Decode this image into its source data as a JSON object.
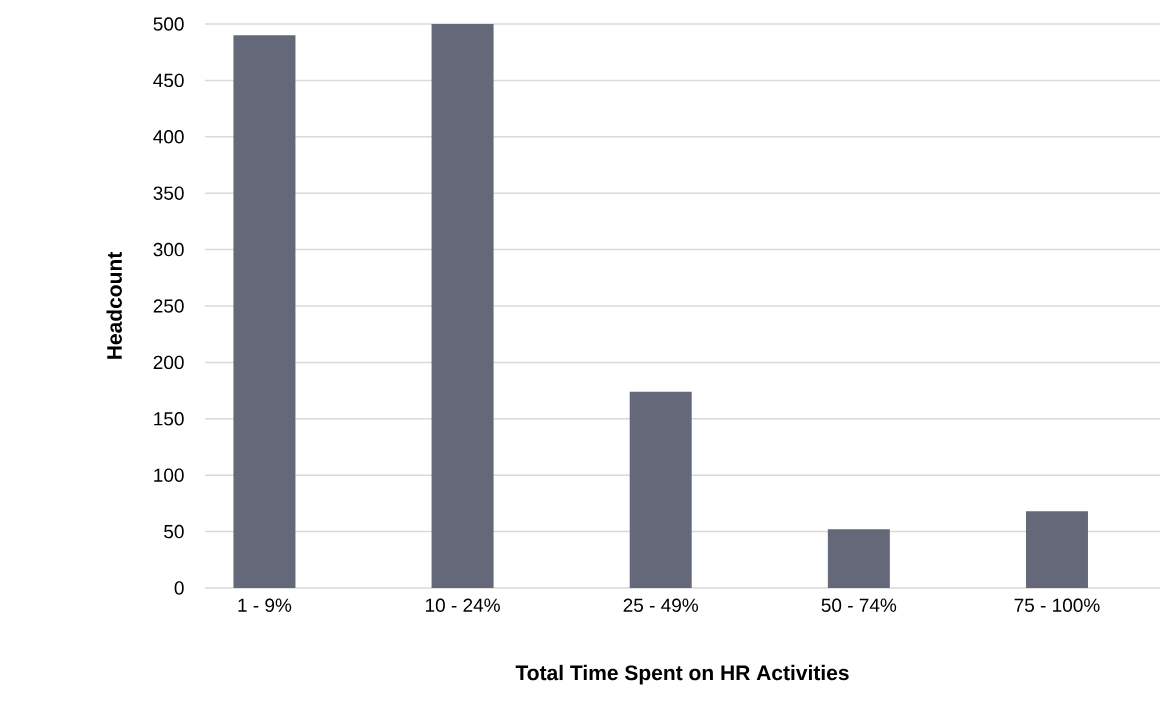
{
  "chart_data": {
    "type": "bar",
    "xlabel": "Total Time Spent on HR Activities",
    "ylabel": "Headcount",
    "categories": [
      "1 - 9%",
      "10 - 24%",
      "25 - 49%",
      "50 - 74%",
      "75 - 100%"
    ],
    "values": [
      490,
      500,
      174,
      52,
      68
    ],
    "color": "#646879",
    "ylim": [
      0,
      500
    ],
    "yticks": [
      0,
      50,
      100,
      150,
      200,
      250,
      300,
      350,
      400,
      450,
      500
    ],
    "grid": "y",
    "legend": false
  }
}
